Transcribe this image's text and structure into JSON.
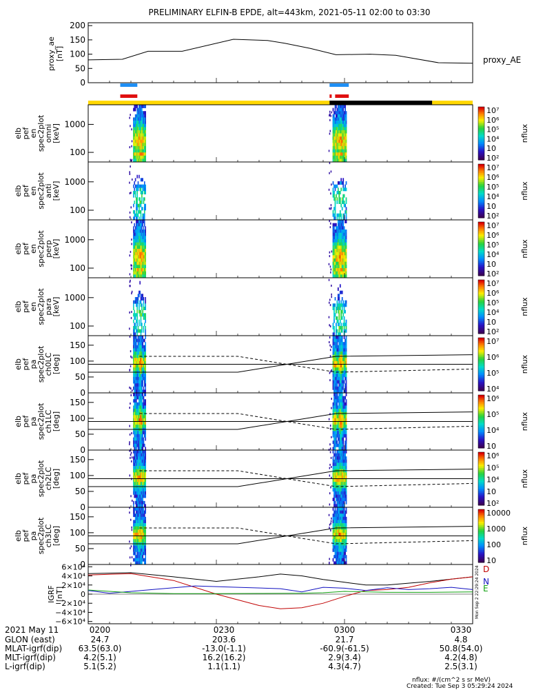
{
  "title": "PRELIMINARY ELFIN-B EPDE, alt=443km, 2021-05-11 02:00 to 03:30",
  "colors": {
    "blue_bar": "#1f8ff5",
    "red_bar": "#e01010",
    "yellow_bar": "#ffd800",
    "black_bar": "#000000",
    "line_D": "#c00000",
    "line_N": "#1010c0",
    "line_E": "#10a010",
    "line_H": "#000000"
  },
  "chart_data": [
    {
      "type": "line",
      "panel": "proxy_ae",
      "ylabel": "proxy_ae [nT]",
      "legend": "proxy_AE",
      "ylim": [
        0,
        210
      ],
      "yticks": [
        "0",
        "50",
        "100",
        "150",
        "200"
      ],
      "x_minutes": [
        0,
        8,
        14,
        22,
        34,
        42,
        46,
        52,
        58,
        66,
        72,
        82,
        90
      ],
      "values": [
        80,
        82,
        110,
        110,
        152,
        148,
        138,
        120,
        98,
        100,
        96,
        70,
        68
      ]
    },
    {
      "type": "heatmap",
      "panel": "en_spec2plot_omni",
      "ylabel": [
        "elb",
        "pef",
        "en",
        "spec2plot",
        "omni",
        "[keV]"
      ],
      "yticks": [
        "100",
        "1000"
      ],
      "colorbar": {
        "label": "nflux",
        "ticks": [
          "10⁷",
          "10⁶",
          "10⁵",
          "10⁴",
          "10⁳",
          "10²"
        ]
      }
    },
    {
      "type": "heatmap",
      "panel": "en_spec2plot_anti",
      "ylabel": [
        "elb",
        "pef",
        "en",
        "spec2plot",
        "anti",
        "[keV]"
      ],
      "yticks": [
        "100",
        "1000"
      ],
      "colorbar": {
        "label": "nflux",
        "ticks": [
          "10⁷",
          "10⁶",
          "10⁵",
          "10⁴",
          "10⁳",
          "10²"
        ]
      }
    },
    {
      "type": "heatmap",
      "panel": "en_spec2plot_perp",
      "ylabel": [
        "elb",
        "pef",
        "en",
        "spec2plot",
        "perp",
        "[keV]"
      ],
      "yticks": [
        "100",
        "1000"
      ],
      "colorbar": {
        "label": "nflux",
        "ticks": [
          "10⁷",
          "10⁶",
          "10⁵",
          "10⁴",
          "10⁳",
          "10²"
        ]
      }
    },
    {
      "type": "heatmap",
      "panel": "en_spec2plot_para",
      "ylabel": [
        "elb",
        "pef",
        "en",
        "spec2plot",
        "para",
        "[keV]"
      ],
      "yticks": [
        "100",
        "1000"
      ],
      "colorbar": {
        "label": "nflux",
        "ticks": [
          "10⁷",
          "10⁶",
          "10⁵",
          "10⁴",
          "10⁳",
          "10²"
        ]
      }
    },
    {
      "type": "heatmap",
      "panel": "pa_spec2plot_ch0LC",
      "ylabel": [
        "elb",
        "pef",
        "pa",
        "spec2plot",
        "ch0LC",
        "[deg]"
      ],
      "yticks": [
        "0",
        "50",
        "100",
        "150"
      ],
      "colorbar": {
        "label": "nflux",
        "ticks": [
          "10⁷",
          "10⁶",
          "10⁵",
          "10⁴"
        ]
      }
    },
    {
      "type": "heatmap",
      "panel": "pa_spec2plot_ch1LC",
      "ylabel": [
        "elb",
        "pef",
        "pa",
        "spec2plot",
        "ch1LC",
        "[deg]"
      ],
      "yticks": [
        "0",
        "50",
        "100",
        "150"
      ],
      "colorbar": {
        "label": "nflux",
        "ticks": [
          "10⁶",
          "10⁵",
          "10⁴",
          "10⁳"
        ]
      }
    },
    {
      "type": "heatmap",
      "panel": "pa_spec2plot_ch2LC",
      "ylabel": [
        "elb",
        "pef",
        "pa",
        "spec2plot",
        "ch2LC",
        "[deg]"
      ],
      "yticks": [
        "0",
        "50",
        "100",
        "150"
      ],
      "colorbar": {
        "label": "nflux",
        "ticks": [
          "10⁶",
          "10⁵",
          "10⁴",
          "10⁳",
          "10²"
        ]
      }
    },
    {
      "type": "heatmap",
      "panel": "pa_spec2plot_ch3LC",
      "ylabel": [
        "elb",
        "pef",
        "pa",
        "spec2plot",
        "ch3LC",
        "[deg]"
      ],
      "yticks": [
        "0",
        "50",
        "100",
        "150"
      ],
      "colorbar": {
        "label": "nflux",
        "ticks": [
          "10000",
          "1000",
          "100",
          "10"
        ]
      }
    },
    {
      "type": "line",
      "panel": "IGRF",
      "ylabel": "IGRF [nT]",
      "ylim": [
        -65000,
        65000
      ],
      "yticks": [
        "6×10⁴",
        "4×10⁴",
        "2×10⁴",
        "0",
        "−2×10⁴",
        "−4×10⁴",
        "−6×10⁴"
      ],
      "legend": [
        "D",
        "N",
        "E"
      ],
      "series": [
        {
          "name": "H",
          "x_minutes": [
            0,
            10,
            20,
            30,
            40,
            45,
            50,
            55,
            60,
            65,
            70,
            75,
            80,
            85,
            90
          ],
          "values": [
            45000,
            47000,
            38000,
            28000,
            38000,
            44000,
            40000,
            32000,
            26000,
            20000,
            20000,
            24000,
            28000,
            33000,
            38000
          ]
        },
        {
          "name": "D",
          "x_minutes": [
            0,
            10,
            20,
            30,
            40,
            45,
            50,
            55,
            60,
            65,
            70,
            75,
            80,
            85,
            90
          ],
          "values": [
            42000,
            45000,
            30000,
            0,
            -25000,
            -32000,
            -30000,
            -20000,
            -5000,
            8000,
            10000,
            15000,
            25000,
            33000,
            38000
          ]
        },
        {
          "name": "N",
          "x_minutes": [
            0,
            5,
            15,
            25,
            35,
            45,
            50,
            55,
            60,
            65,
            70,
            75,
            80,
            85,
            90
          ],
          "values": [
            8000,
            2000,
            10000,
            18000,
            15000,
            12000,
            5000,
            15000,
            13000,
            8000,
            14000,
            10000,
            12000,
            15000,
            10000
          ]
        },
        {
          "name": "E",
          "x_minutes": [
            0,
            10,
            20,
            30,
            40,
            50,
            55,
            60,
            70,
            80,
            90
          ],
          "values": [
            9000,
            3000,
            1000,
            1000,
            1500,
            2000,
            3000,
            6000,
            4000,
            4000,
            5000
          ]
        }
      ]
    }
  ],
  "time_axis": {
    "labels": [
      "0200",
      "0230",
      "0300",
      "0330"
    ],
    "rows": [
      {
        "name": "2021 May 11",
        "values": [
          "0200",
          "0230",
          "0300",
          "0330"
        ]
      },
      {
        "name": "GLON (east)",
        "values": [
          "24.7",
          "203.6",
          "21.7",
          "4.8"
        ]
      },
      {
        "name": "MLAT-igrf(dip)",
        "values": [
          "63.5(63.0)",
          "-13.0(-1.1)",
          "-60.9(-61.5)",
          "50.8(54.0)"
        ]
      },
      {
        "name": "MLT-igrf(dip)",
        "values": [
          "4.2(5.1)",
          "16.2(16.2)",
          "2.9(3.4)",
          "4.2(4.8)"
        ]
      },
      {
        "name": "L-igrf(dip)",
        "values": [
          "5.1(5.2)",
          "1.1(1.1)",
          "4.3(4.7)",
          "2.5(3.1)"
        ]
      }
    ]
  },
  "footer": {
    "units": "nflux: #/(cm^2 s sr MeV)",
    "created": "Created: Tue Sep  3 05:29:24 2024",
    "side_stamp": "Mon Sep  2 22:29:24 2024"
  }
}
